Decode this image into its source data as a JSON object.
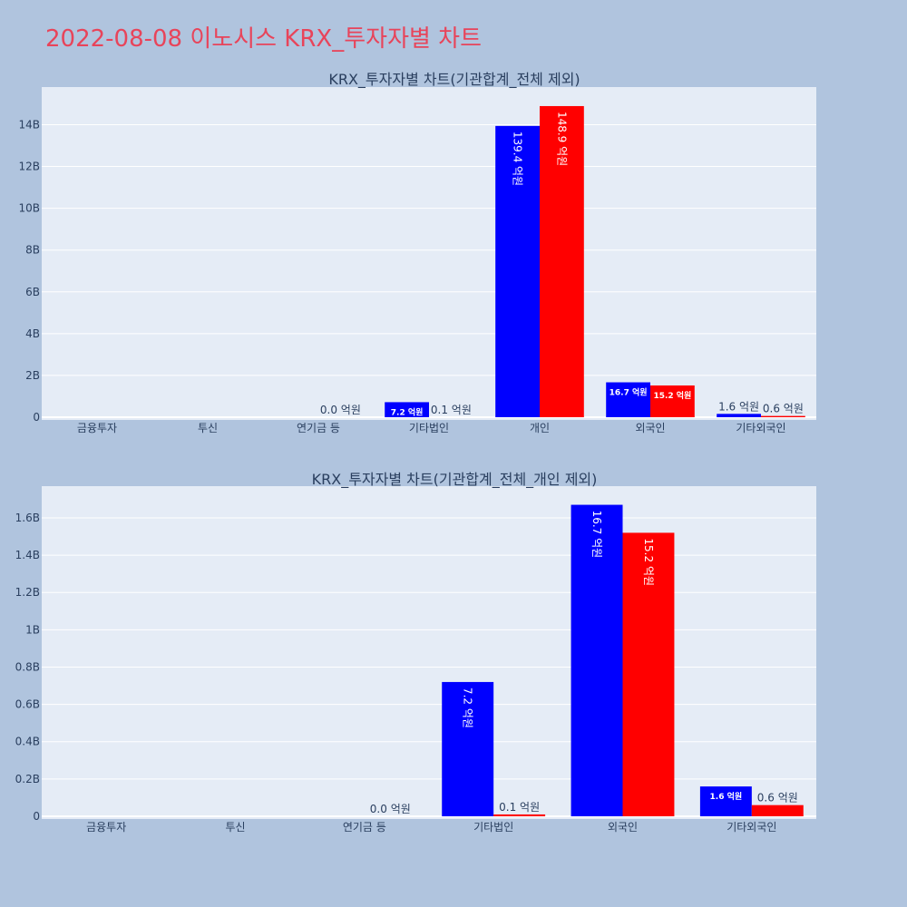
{
  "title": "2022-08-08 이노시스 KRX_투자자별 차트",
  "colors": {
    "background": "#b0c4de",
    "plot_bg": "#e5ecf6",
    "title": "#e8445a",
    "series1": "#0000ff",
    "series2": "#ff0000"
  },
  "chart_data": [
    {
      "type": "bar",
      "title": "KRX_투자자별 차트(기관합계_전체 제외)",
      "categories": [
        "금융투자",
        "투신",
        "연기금 등",
        "기타법인",
        "개인",
        "외국인",
        "기타외국인"
      ],
      "series": [
        {
          "values": [
            0,
            0,
            0,
            720000000.0,
            13940000000.0,
            1670000000.0,
            160000000.0
          ],
          "labels": [
            "",
            "",
            "",
            "7.2 억원",
            "139.4 억원",
            "16.7 억원",
            "1.6 억원"
          ],
          "color": "#0000ff"
        },
        {
          "values": [
            0,
            0,
            0,
            10000000.0,
            14890000000.0,
            1520000000.0,
            60000000.0
          ],
          "labels": [
            "",
            "",
            "0.0 억원",
            "0.1 억원",
            "148.9 억원",
            "15.2 억원",
            "0.6 억원"
          ],
          "color": "#ff0000"
        }
      ],
      "ylim": [
        0,
        15800000000.0
      ],
      "yticks": [
        0,
        2000000000.0,
        4000000000.0,
        6000000000.0,
        8000000000.0,
        10000000000.0,
        12000000000.0,
        14000000000.0
      ],
      "ytick_labels": [
        "0",
        "2B",
        "4B",
        "6B",
        "8B",
        "10B",
        "12B",
        "14B"
      ],
      "grid": true
    },
    {
      "type": "bar",
      "title": "KRX_투자자별 차트(기관합계_전체_개인 제외)",
      "categories": [
        "금융투자",
        "투신",
        "연기금 등",
        "기타법인",
        "외국인",
        "기타외국인"
      ],
      "series": [
        {
          "values": [
            0,
            0,
            0,
            720000000.0,
            1670000000.0,
            160000000.0
          ],
          "labels": [
            "",
            "",
            "",
            "7.2 억원",
            "16.7 억원",
            "1.6 억원"
          ],
          "color": "#0000ff"
        },
        {
          "values": [
            0,
            0,
            0,
            10000000.0,
            1520000000.0,
            60000000.0
          ],
          "labels": [
            "",
            "",
            "0.0 억원",
            "0.1 억원",
            "15.2 억원",
            "0.6 억원"
          ],
          "color": "#ff0000"
        }
      ],
      "ylim": [
        0,
        1770000000.0
      ],
      "yticks": [
        0,
        200000000.0,
        400000000.0,
        600000000.0,
        800000000.0,
        1000000000.0,
        1200000000.0,
        1400000000.0,
        1600000000.0
      ],
      "ytick_labels": [
        "0",
        "0.2B",
        "0.4B",
        "0.6B",
        "0.8B",
        "1B",
        "1.2B",
        "1.4B",
        "1.6B"
      ],
      "grid": true
    }
  ]
}
